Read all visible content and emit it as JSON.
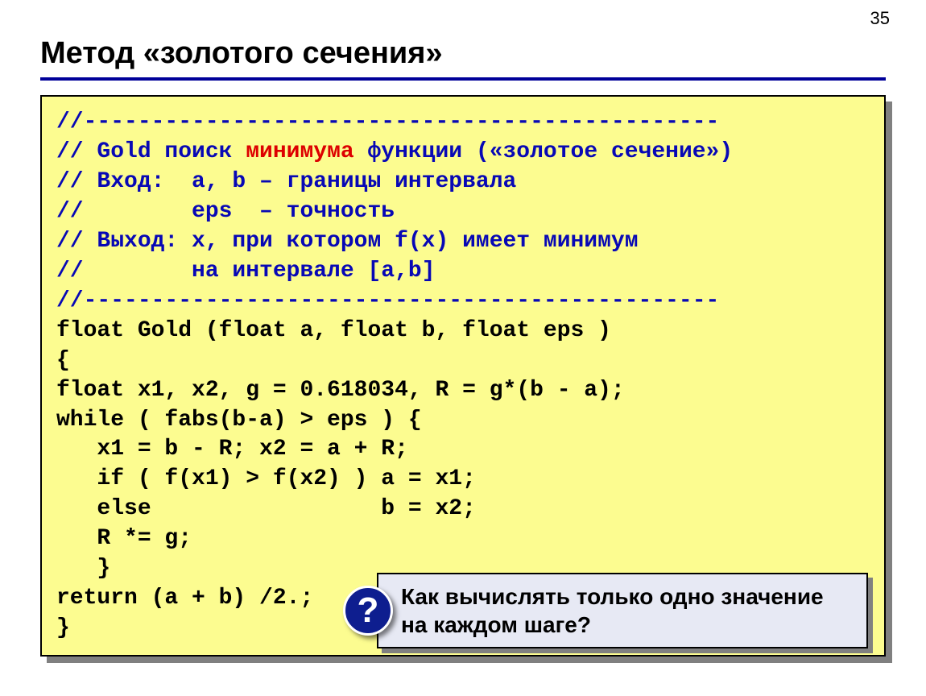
{
  "page_number": "35",
  "title": "Метод «золотого сечения»",
  "colors": {
    "title_rule": "#000099",
    "code_bg": "#fcfc90",
    "code_border": "#000000",
    "shadow": "#808080",
    "comment": "#0808b5",
    "keyword": "#dd0000",
    "code_text": "#000000",
    "callout_bg": "#e7e9f4",
    "badge_bg": "#0e1e8f",
    "badge_fg": "#ffffff"
  },
  "code": {
    "sep1": "//-----------------------------------------------",
    "l2_a": "// Gold поиск ",
    "l2_kw": "минимума",
    "l2_b": " функции («золотое сечение»)",
    "l3": "// Вход:  a, b – границы интервала",
    "l4": "//        eps  – точность",
    "l5": "// Выход: x, при котором f(x) имеет минимум",
    "l6": "//        на интервале [a,b]",
    "sep2": "//-----------------------------------------------",
    "l8": "float Gold (float a, float b, float eps )",
    "l9": "{",
    "l10": "float x1, x2, g = 0.618034, R = g*(b - a);",
    "l11": "while ( fabs(b-a) > eps ) {",
    "l12": "   x1 = b - R; x2 = a + R;",
    "l13": "   if ( f(x1) > f(x2) ) a = x1;",
    "l14": "   else                 b = x2;",
    "l15": "   R *= g;",
    "l16": "   }",
    "l17": "return (a + b) /2.;",
    "l18": "}"
  },
  "callout": {
    "badge": "?",
    "text": "Как вычислять только одно значение на каждом шаге?"
  }
}
